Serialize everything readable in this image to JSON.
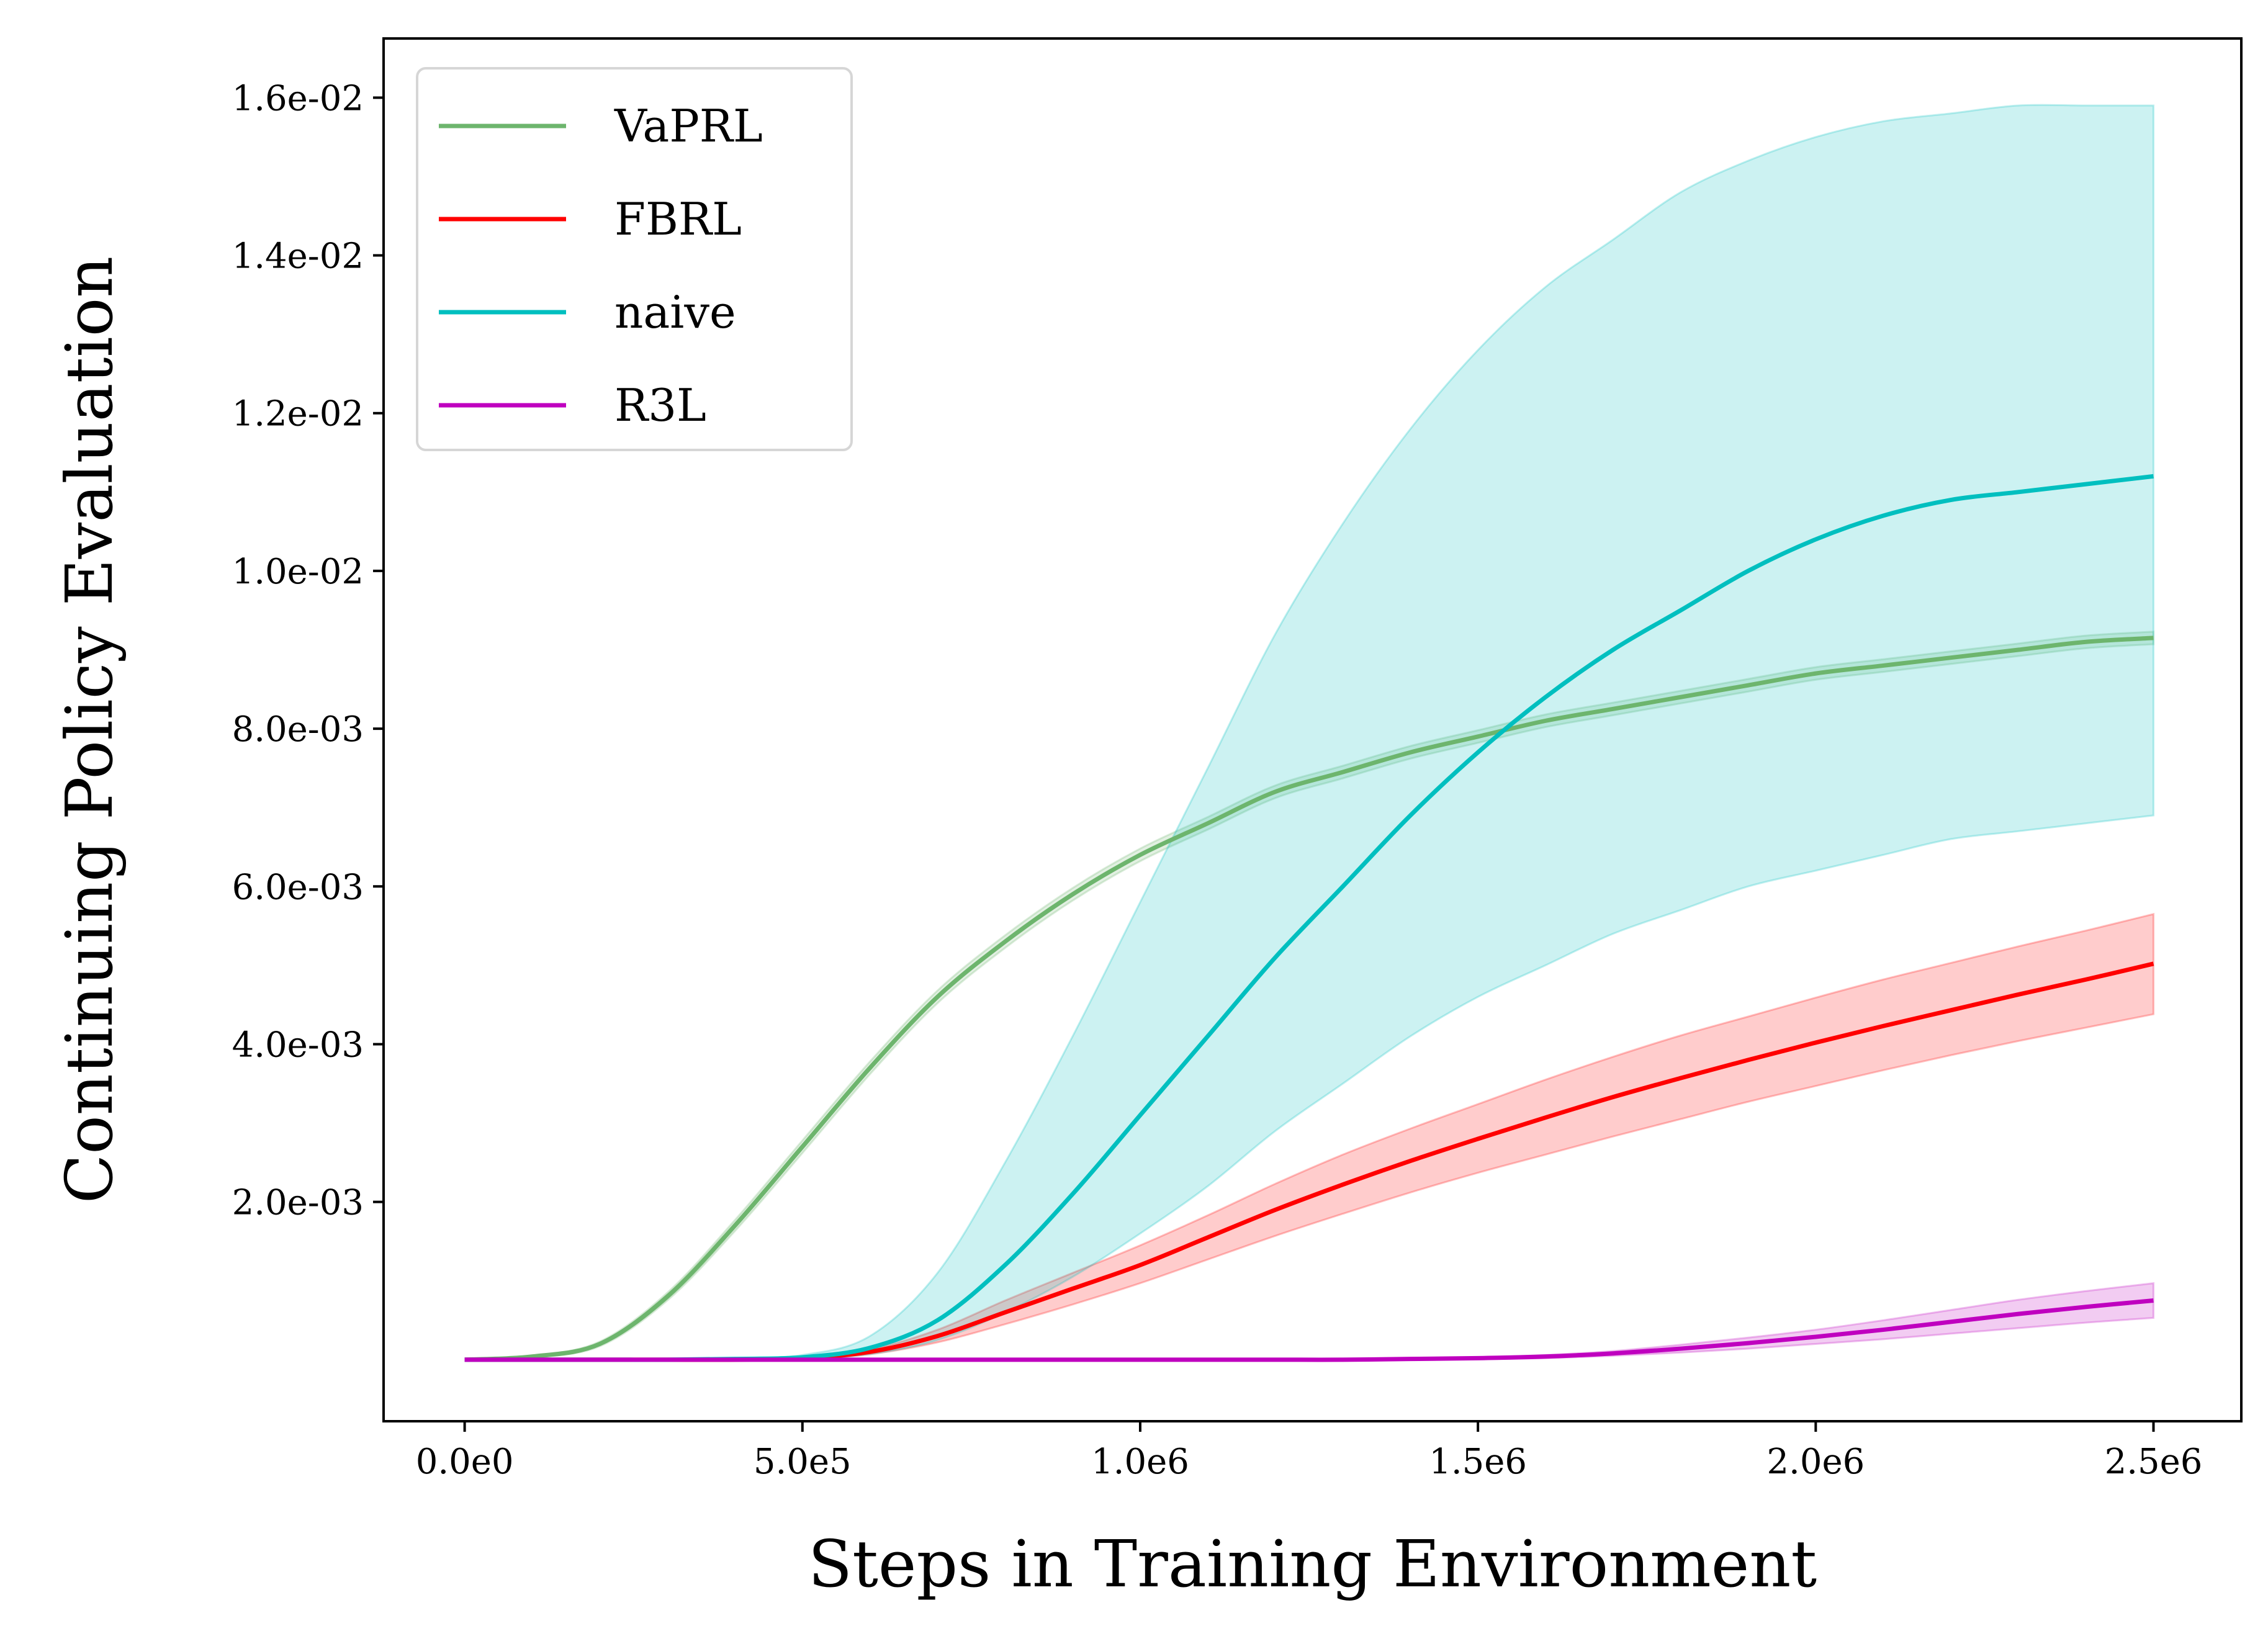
{
  "chart_data": {
    "type": "line",
    "xlabel": "Steps in Training Environment",
    "ylabel": "Continuing Policy Evaluation",
    "xlim": [
      -120000,
      2630000
    ],
    "ylim": [
      -0.00078,
      0.01675
    ],
    "x_ticks": [
      0,
      500000,
      1000000,
      1500000,
      2000000,
      2500000
    ],
    "x_tick_labels": [
      "0.0e0",
      "5.0e5",
      "1.0e6",
      "1.5e6",
      "2.0e6",
      "2.5e6"
    ],
    "y_ticks": [
      0.002,
      0.004,
      0.006,
      0.008,
      0.01,
      0.012,
      0.014,
      0.016
    ],
    "y_tick_labels": [
      "2.0e-03",
      "4.0e-03",
      "6.0e-03",
      "8.0e-03",
      "1.0e-02",
      "1.2e-02",
      "1.4e-02",
      "1.6e-02"
    ],
    "grid": false,
    "legend_position": "top-left",
    "x": [
      0,
      100000,
      200000,
      300000,
      400000,
      500000,
      600000,
      700000,
      800000,
      900000,
      1000000,
      1100000,
      1200000,
      1300000,
      1400000,
      1500000,
      1600000,
      1700000,
      1800000,
      1900000,
      2000000,
      2100000,
      2200000,
      2300000,
      2400000,
      2500000
    ],
    "series": [
      {
        "name": "VaPRL",
        "color": "#6db56d",
        "values": [
          0.0,
          4e-05,
          0.0002,
          0.0008,
          0.0017,
          0.0027,
          0.0037,
          0.0046,
          0.0053,
          0.0059,
          0.0064,
          0.0068,
          0.0072,
          0.00745,
          0.0077,
          0.0079,
          0.0081,
          0.00825,
          0.0084,
          0.00855,
          0.0087,
          0.0088,
          0.0089,
          0.009,
          0.0091,
          0.00915
        ],
        "lower": [
          0.0,
          3e-05,
          0.00017,
          0.00075,
          0.00163,
          0.00262,
          0.00362,
          0.00452,
          0.00522,
          0.00582,
          0.00632,
          0.00672,
          0.00712,
          0.00737,
          0.00762,
          0.00782,
          0.00802,
          0.00817,
          0.00832,
          0.00847,
          0.00862,
          0.00872,
          0.00882,
          0.00892,
          0.00902,
          0.00907
        ],
        "upper": [
          0.0,
          5e-05,
          0.00023,
          0.00085,
          0.00177,
          0.00278,
          0.00378,
          0.00468,
          0.00538,
          0.00598,
          0.00648,
          0.00688,
          0.00728,
          0.00753,
          0.00778,
          0.00798,
          0.00818,
          0.00833,
          0.00848,
          0.00863,
          0.00878,
          0.00888,
          0.00898,
          0.00908,
          0.00918,
          0.00923
        ]
      },
      {
        "name": "FBRL",
        "color": "#ff0000",
        "values": [
          0.0,
          0.0,
          0.0,
          0.0,
          0.0,
          2e-05,
          0.0001,
          0.0003,
          0.0006,
          0.0009,
          0.0012,
          0.00155,
          0.0019,
          0.00222,
          0.00252,
          0.0028,
          0.00307,
          0.00333,
          0.00357,
          0.0038,
          0.00402,
          0.00423,
          0.00443,
          0.00463,
          0.00482,
          0.00502
        ],
        "lower": [
          0.0,
          0.0,
          0.0,
          0.0,
          0.0,
          1e-05,
          7e-05,
          0.00022,
          0.00045,
          0.0007,
          0.00097,
          0.00127,
          0.00157,
          0.00185,
          0.00212,
          0.00237,
          0.0026,
          0.00283,
          0.00305,
          0.00327,
          0.00347,
          0.00367,
          0.00386,
          0.00404,
          0.00421,
          0.00438
        ],
        "upper": [
          0.0,
          0.0,
          0.0,
          0.0,
          0.0,
          3e-05,
          0.00013,
          0.00038,
          0.00075,
          0.0011,
          0.00145,
          0.00183,
          0.00223,
          0.0026,
          0.00293,
          0.00324,
          0.00355,
          0.00384,
          0.00411,
          0.00435,
          0.00459,
          0.00482,
          0.00503,
          0.00524,
          0.00544,
          0.00565
        ]
      },
      {
        "name": "naive",
        "color": "#00bfbf",
        "values": [
          0.0,
          0.0,
          0.0,
          0.0,
          1e-05,
          3e-05,
          0.00015,
          0.0005,
          0.0012,
          0.0021,
          0.0031,
          0.0041,
          0.0051,
          0.006,
          0.0069,
          0.0077,
          0.0084,
          0.009,
          0.0095,
          0.01,
          0.0104,
          0.0107,
          0.0109,
          0.011,
          0.0111,
          0.0112
        ],
        "lower": [
          0.0,
          0.0,
          0.0,
          0.0,
          0.0,
          1e-05,
          7e-05,
          0.00025,
          0.0006,
          0.00105,
          0.0016,
          0.0022,
          0.0029,
          0.0035,
          0.0041,
          0.0046,
          0.005,
          0.0054,
          0.0057,
          0.006,
          0.0062,
          0.0064,
          0.0066,
          0.0067,
          0.0068,
          0.0069
        ],
        "upper": [
          0.0,
          0.0,
          0.0,
          0.0,
          2e-05,
          6e-05,
          0.0003,
          0.0011,
          0.0025,
          0.0041,
          0.0058,
          0.0075,
          0.0092,
          0.0106,
          0.0118,
          0.0128,
          0.0136,
          0.0142,
          0.0148,
          0.0152,
          0.0155,
          0.0157,
          0.0158,
          0.0159,
          0.0159,
          0.0159
        ]
      },
      {
        "name": "R3L",
        "color": "#bf00bf",
        "values": [
          0.0,
          0.0,
          0.0,
          0.0,
          0.0,
          0.0,
          0.0,
          0.0,
          0.0,
          0.0,
          0.0,
          0.0,
          0.0,
          0.0,
          1e-05,
          2e-05,
          4e-05,
          8e-05,
          0.00014,
          0.00021,
          0.00029,
          0.00038,
          0.00048,
          0.00058,
          0.00067,
          0.00075
        ],
        "lower": [
          0.0,
          0.0,
          0.0,
          0.0,
          0.0,
          0.0,
          0.0,
          0.0,
          0.0,
          0.0,
          0.0,
          0.0,
          0.0,
          0.0,
          0.0,
          1e-05,
          2e-05,
          5e-05,
          9e-05,
          0.00014,
          0.0002,
          0.00026,
          0.00033,
          0.0004,
          0.00047,
          0.00053
        ],
        "upper": [
          0.0,
          0.0,
          0.0,
          0.0,
          0.0,
          0.0,
          0.0,
          0.0,
          0.0,
          0.0,
          0.0,
          0.0,
          0.0,
          0.0,
          2e-05,
          3e-05,
          6e-05,
          0.00011,
          0.00019,
          0.00028,
          0.00038,
          0.0005,
          0.00063,
          0.00076,
          0.00087,
          0.00097
        ]
      }
    ]
  }
}
